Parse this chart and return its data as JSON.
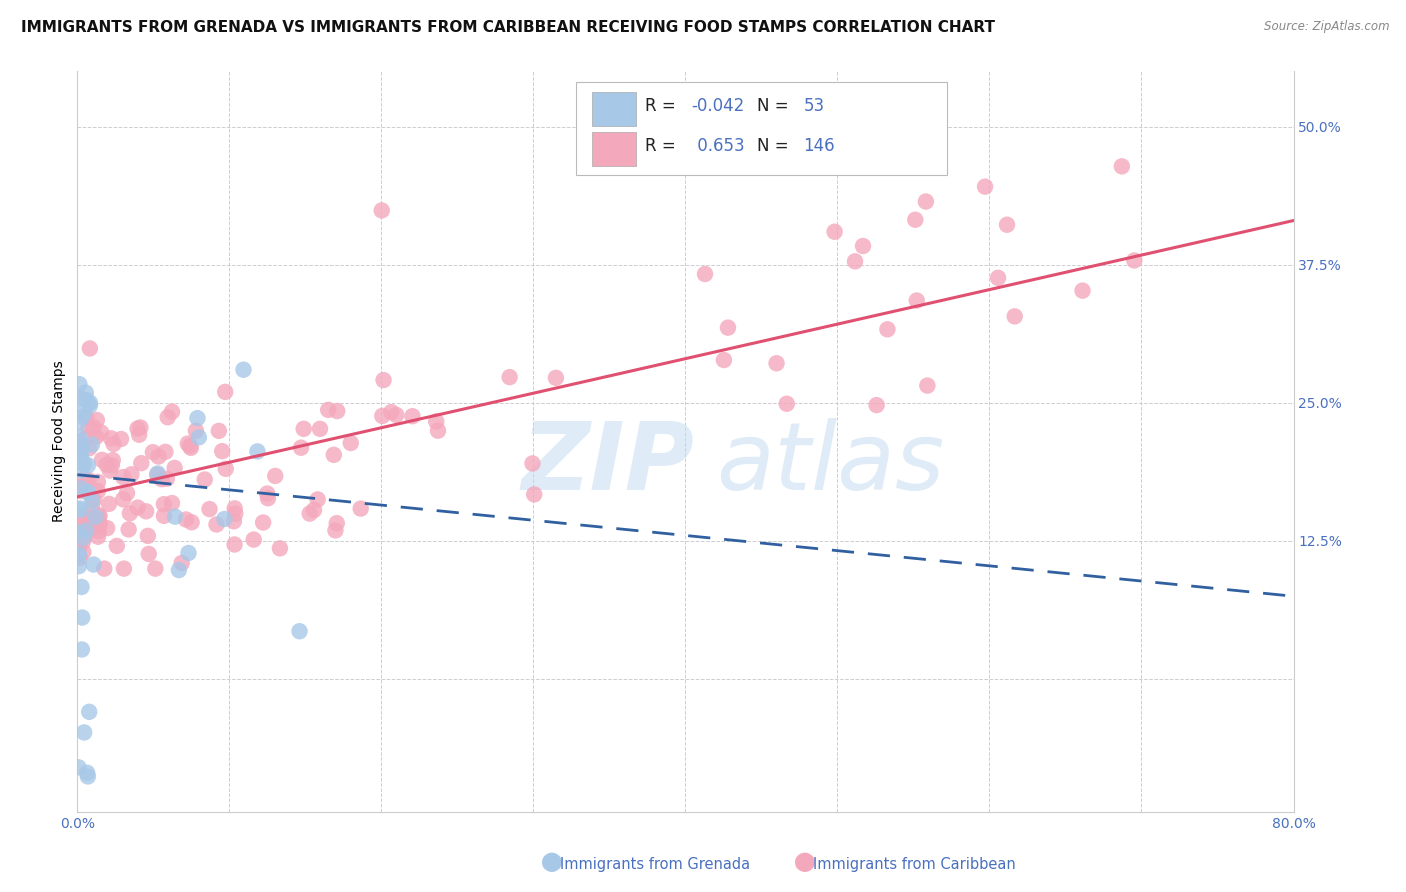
{
  "title": "IMMIGRANTS FROM GRENADA VS IMMIGRANTS FROM CARIBBEAN RECEIVING FOOD STAMPS CORRELATION CHART",
  "source": "Source: ZipAtlas.com",
  "ylabel": "Receiving Food Stamps",
  "x_min": 0.0,
  "x_max": 0.8,
  "y_min": -0.12,
  "y_max": 0.55,
  "grenada_R": -0.042,
  "grenada_N": 53,
  "caribbean_R": 0.653,
  "caribbean_N": 146,
  "grenada_color": "#a8c8e8",
  "caribbean_color": "#f4a8bc",
  "grenada_line_color": "#3060a0",
  "caribbean_line_color": "#e05070",
  "background_color": "#ffffff",
  "grid_color": "#c8c8d0",
  "tick_label_color": "#4a70c0",
  "title_fontsize": 11,
  "axis_label_fontsize": 10,
  "tick_fontsize": 10,
  "legend_fontsize": 12,
  "watermark_color": "#c0d8f0",
  "watermark_alpha": 0.5,
  "legend_text_color": "#4a70c0",
  "legend_r_label_color": "#000000"
}
